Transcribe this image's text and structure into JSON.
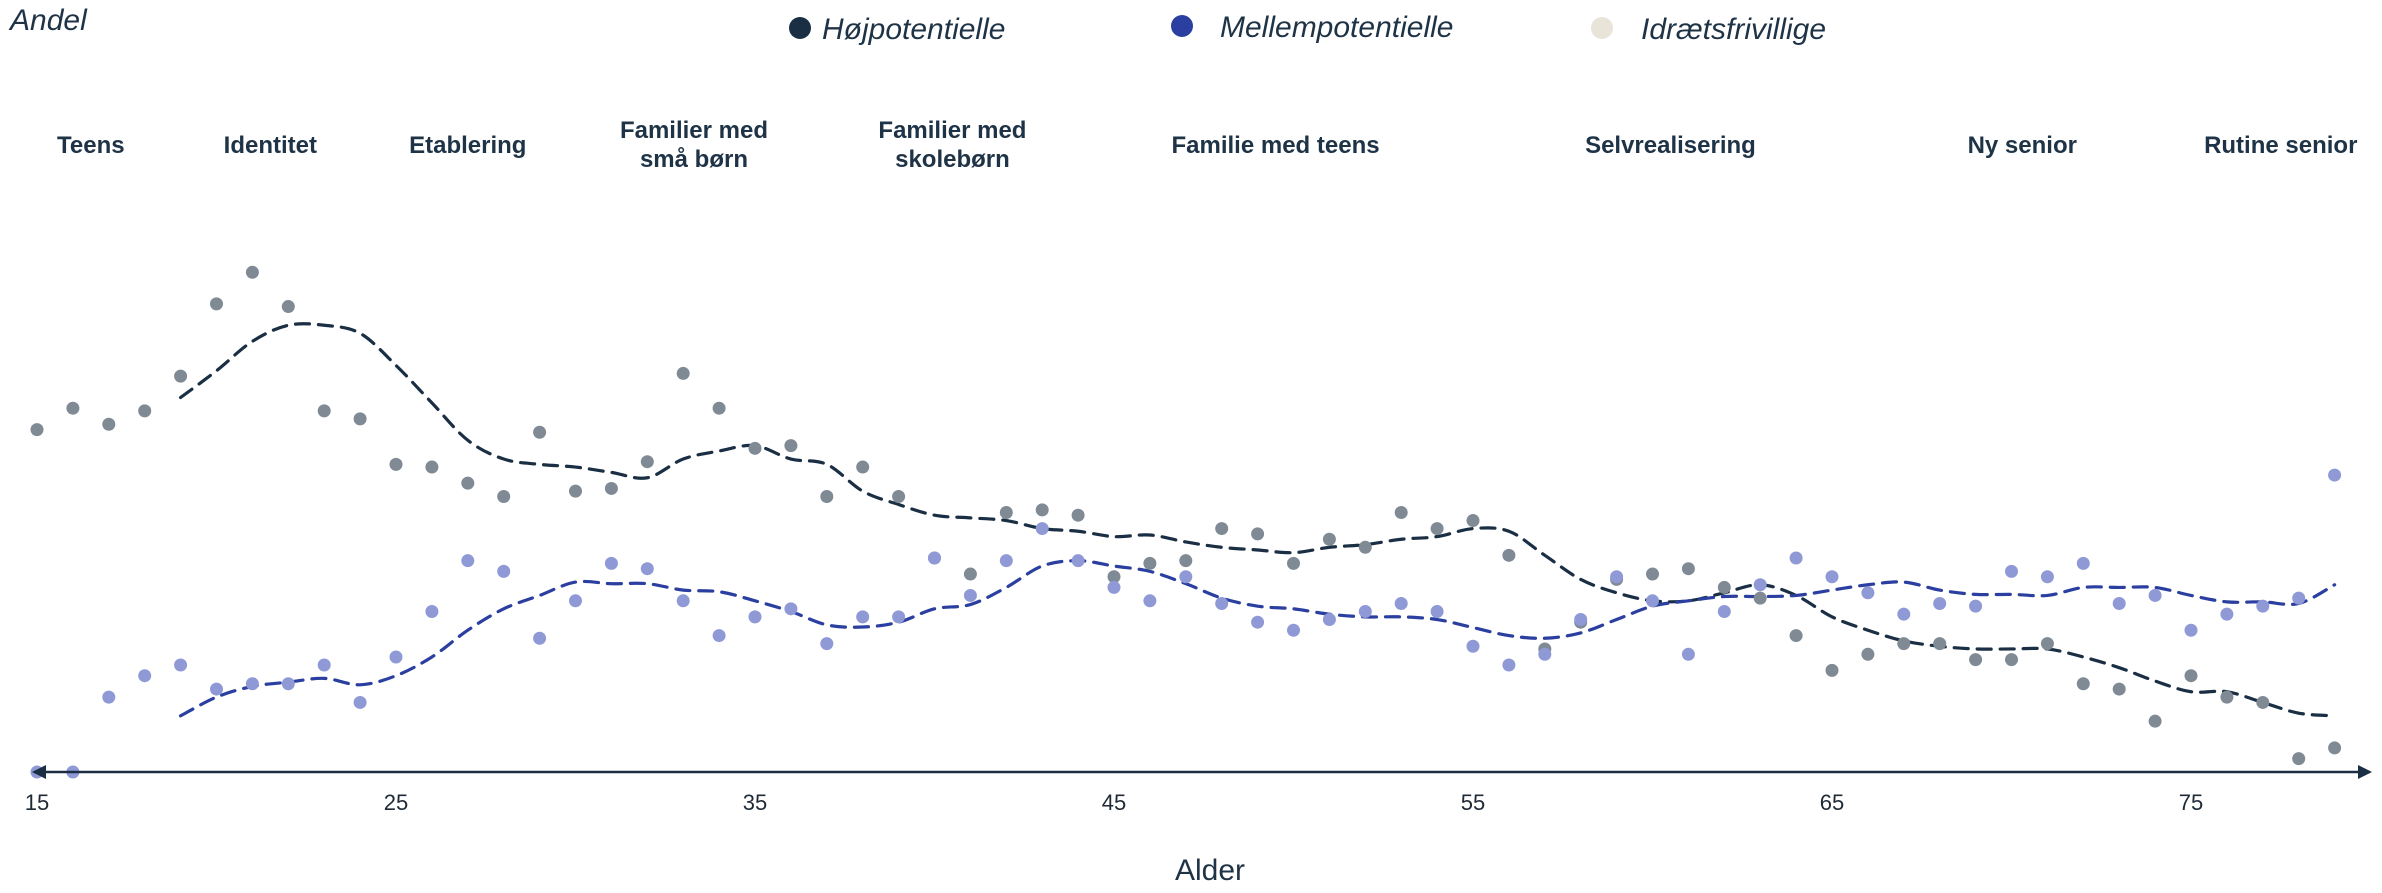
{
  "chart_data": {
    "type": "scatter",
    "ylabel": "Andel",
    "xlabel": "Alder",
    "xlim": [
      15,
      80
    ],
    "ylim": [
      0,
      100
    ],
    "x_ticks": [
      15,
      25,
      35,
      45,
      55,
      65,
      75
    ],
    "grid": false,
    "legend": {
      "placement": "top-center",
      "entries": [
        {
          "name": "Højpotentielle",
          "color": "#1a2e44"
        },
        {
          "name": "Mellempotentielle",
          "color": "#2b3fa0"
        },
        {
          "name": "Idrætsfrivillige",
          "color": "#e8e4d8"
        }
      ]
    },
    "phases": [
      {
        "lines": [
          "Teens"
        ],
        "center": 16.5
      },
      {
        "lines": [
          "Identitet"
        ],
        "center": 21.5
      },
      {
        "lines": [
          "Etablering"
        ],
        "center": 27
      },
      {
        "lines": [
          "Familier med",
          "små børn"
        ],
        "center": 33.3
      },
      {
        "lines": [
          "Familier med",
          "skolebørn"
        ],
        "center": 40.5
      },
      {
        "lines": [
          "Familie med teens"
        ],
        "center": 49.5
      },
      {
        "lines": [
          "Selvrealisering"
        ],
        "center": 60.5
      },
      {
        "lines": [
          "Ny senior"
        ],
        "center": 70.3
      },
      {
        "lines": [
          "Rutine senior"
        ],
        "center": 77.5
      }
    ],
    "x": [
      15,
      16,
      17,
      18,
      19,
      20,
      21,
      22,
      23,
      24,
      25,
      26,
      27,
      28,
      29,
      30,
      31,
      32,
      33,
      34,
      35,
      36,
      37,
      38,
      39,
      40,
      41,
      42,
      43,
      44,
      45,
      46,
      47,
      48,
      49,
      50,
      51,
      52,
      53,
      54,
      55,
      56,
      57,
      58,
      59,
      60,
      61,
      62,
      63,
      64,
      65,
      66,
      67,
      68,
      69,
      70,
      71,
      72,
      73,
      74,
      75,
      76,
      77,
      78,
      79
    ],
    "series": [
      {
        "name": "Højpotentielle",
        "color": "#7f8a95",
        "trend_color": "#1a2e44",
        "values": [
          64,
          68,
          65,
          67.5,
          74,
          87.5,
          93.4,
          87,
          67.5,
          66,
          57.5,
          57,
          54,
          51.5,
          63.5,
          52.5,
          53,
          58,
          74.5,
          68,
          60.5,
          61,
          51.5,
          57,
          51.5,
          40,
          37,
          48.5,
          49,
          48,
          36.5,
          39,
          39.5,
          45.5,
          44.5,
          39,
          43.5,
          42,
          48.5,
          45.5,
          47,
          40.5,
          23,
          28,
          36,
          37,
          38,
          34.5,
          32.5,
          25.5,
          19,
          22,
          24,
          24,
          21,
          21,
          24,
          16.5,
          15.5,
          9.5,
          18,
          14,
          13,
          2.5,
          4.5
        ],
        "trend_values": [
          null,
          null,
          null,
          null,
          70,
          75,
          80.5,
          83.5,
          83.5,
          82,
          76,
          69,
          62,
          58.5,
          57.5,
          57,
          56,
          55,
          58.5,
          60,
          61,
          58.5,
          57.5,
          52.5,
          50,
          48,
          47.5,
          47,
          45.5,
          45,
          44,
          44.3,
          43,
          42,
          41.5,
          41,
          42,
          42.5,
          43.5,
          44,
          45.5,
          45,
          40.5,
          36,
          33.5,
          32,
          32,
          33.5,
          35,
          33,
          29,
          26.5,
          24.5,
          23.5,
          23,
          23,
          23,
          21.5,
          19.5,
          17,
          15,
          15,
          13,
          11,
          10.5
        ]
      },
      {
        "name": "Mellempotentielle",
        "color": "#8f99d6",
        "trend_color": "#2b3fa0",
        "values": [
          0,
          0,
          14,
          18,
          20,
          15.5,
          16.5,
          16.5,
          20,
          13,
          21.5,
          30,
          39.5,
          37.5,
          25,
          32,
          39,
          38,
          32,
          25.5,
          29,
          30.5,
          24,
          29,
          29,
          40,
          33,
          39.5,
          45.5,
          39.5,
          34.5,
          32,
          36.5,
          31.5,
          28,
          26.5,
          28.5,
          30,
          31.5,
          30,
          23.5,
          20,
          22,
          28.5,
          36.5,
          32,
          22,
          30,
          35,
          40,
          36.5,
          33.5,
          29.5,
          31.5,
          31,
          37.5,
          36.5,
          39,
          31.5,
          33,
          26.5,
          29.5,
          31,
          32.5,
          55.5
        ],
        "trend_values": [
          null,
          null,
          null,
          null,
          10.5,
          14,
          16,
          16.8,
          17.5,
          16.3,
          18,
          21.5,
          26.5,
          30.5,
          33,
          35.5,
          35.2,
          35.2,
          34,
          33.7,
          32,
          30,
          27.5,
          27.1,
          28,
          30.5,
          31.3,
          34.5,
          38.5,
          39.5,
          38.5,
          37.5,
          35.2,
          32.5,
          31,
          30.5,
          29.5,
          29,
          29,
          28.5,
          27,
          25.5,
          25,
          26,
          28.5,
          31,
          32,
          32.8,
          32.8,
          33,
          34,
          35,
          35.5,
          34,
          33.2,
          33.2,
          33,
          34.5,
          34.5,
          34.5,
          33,
          31.8,
          31.8,
          31.5,
          35
        ]
      }
    ]
  }
}
